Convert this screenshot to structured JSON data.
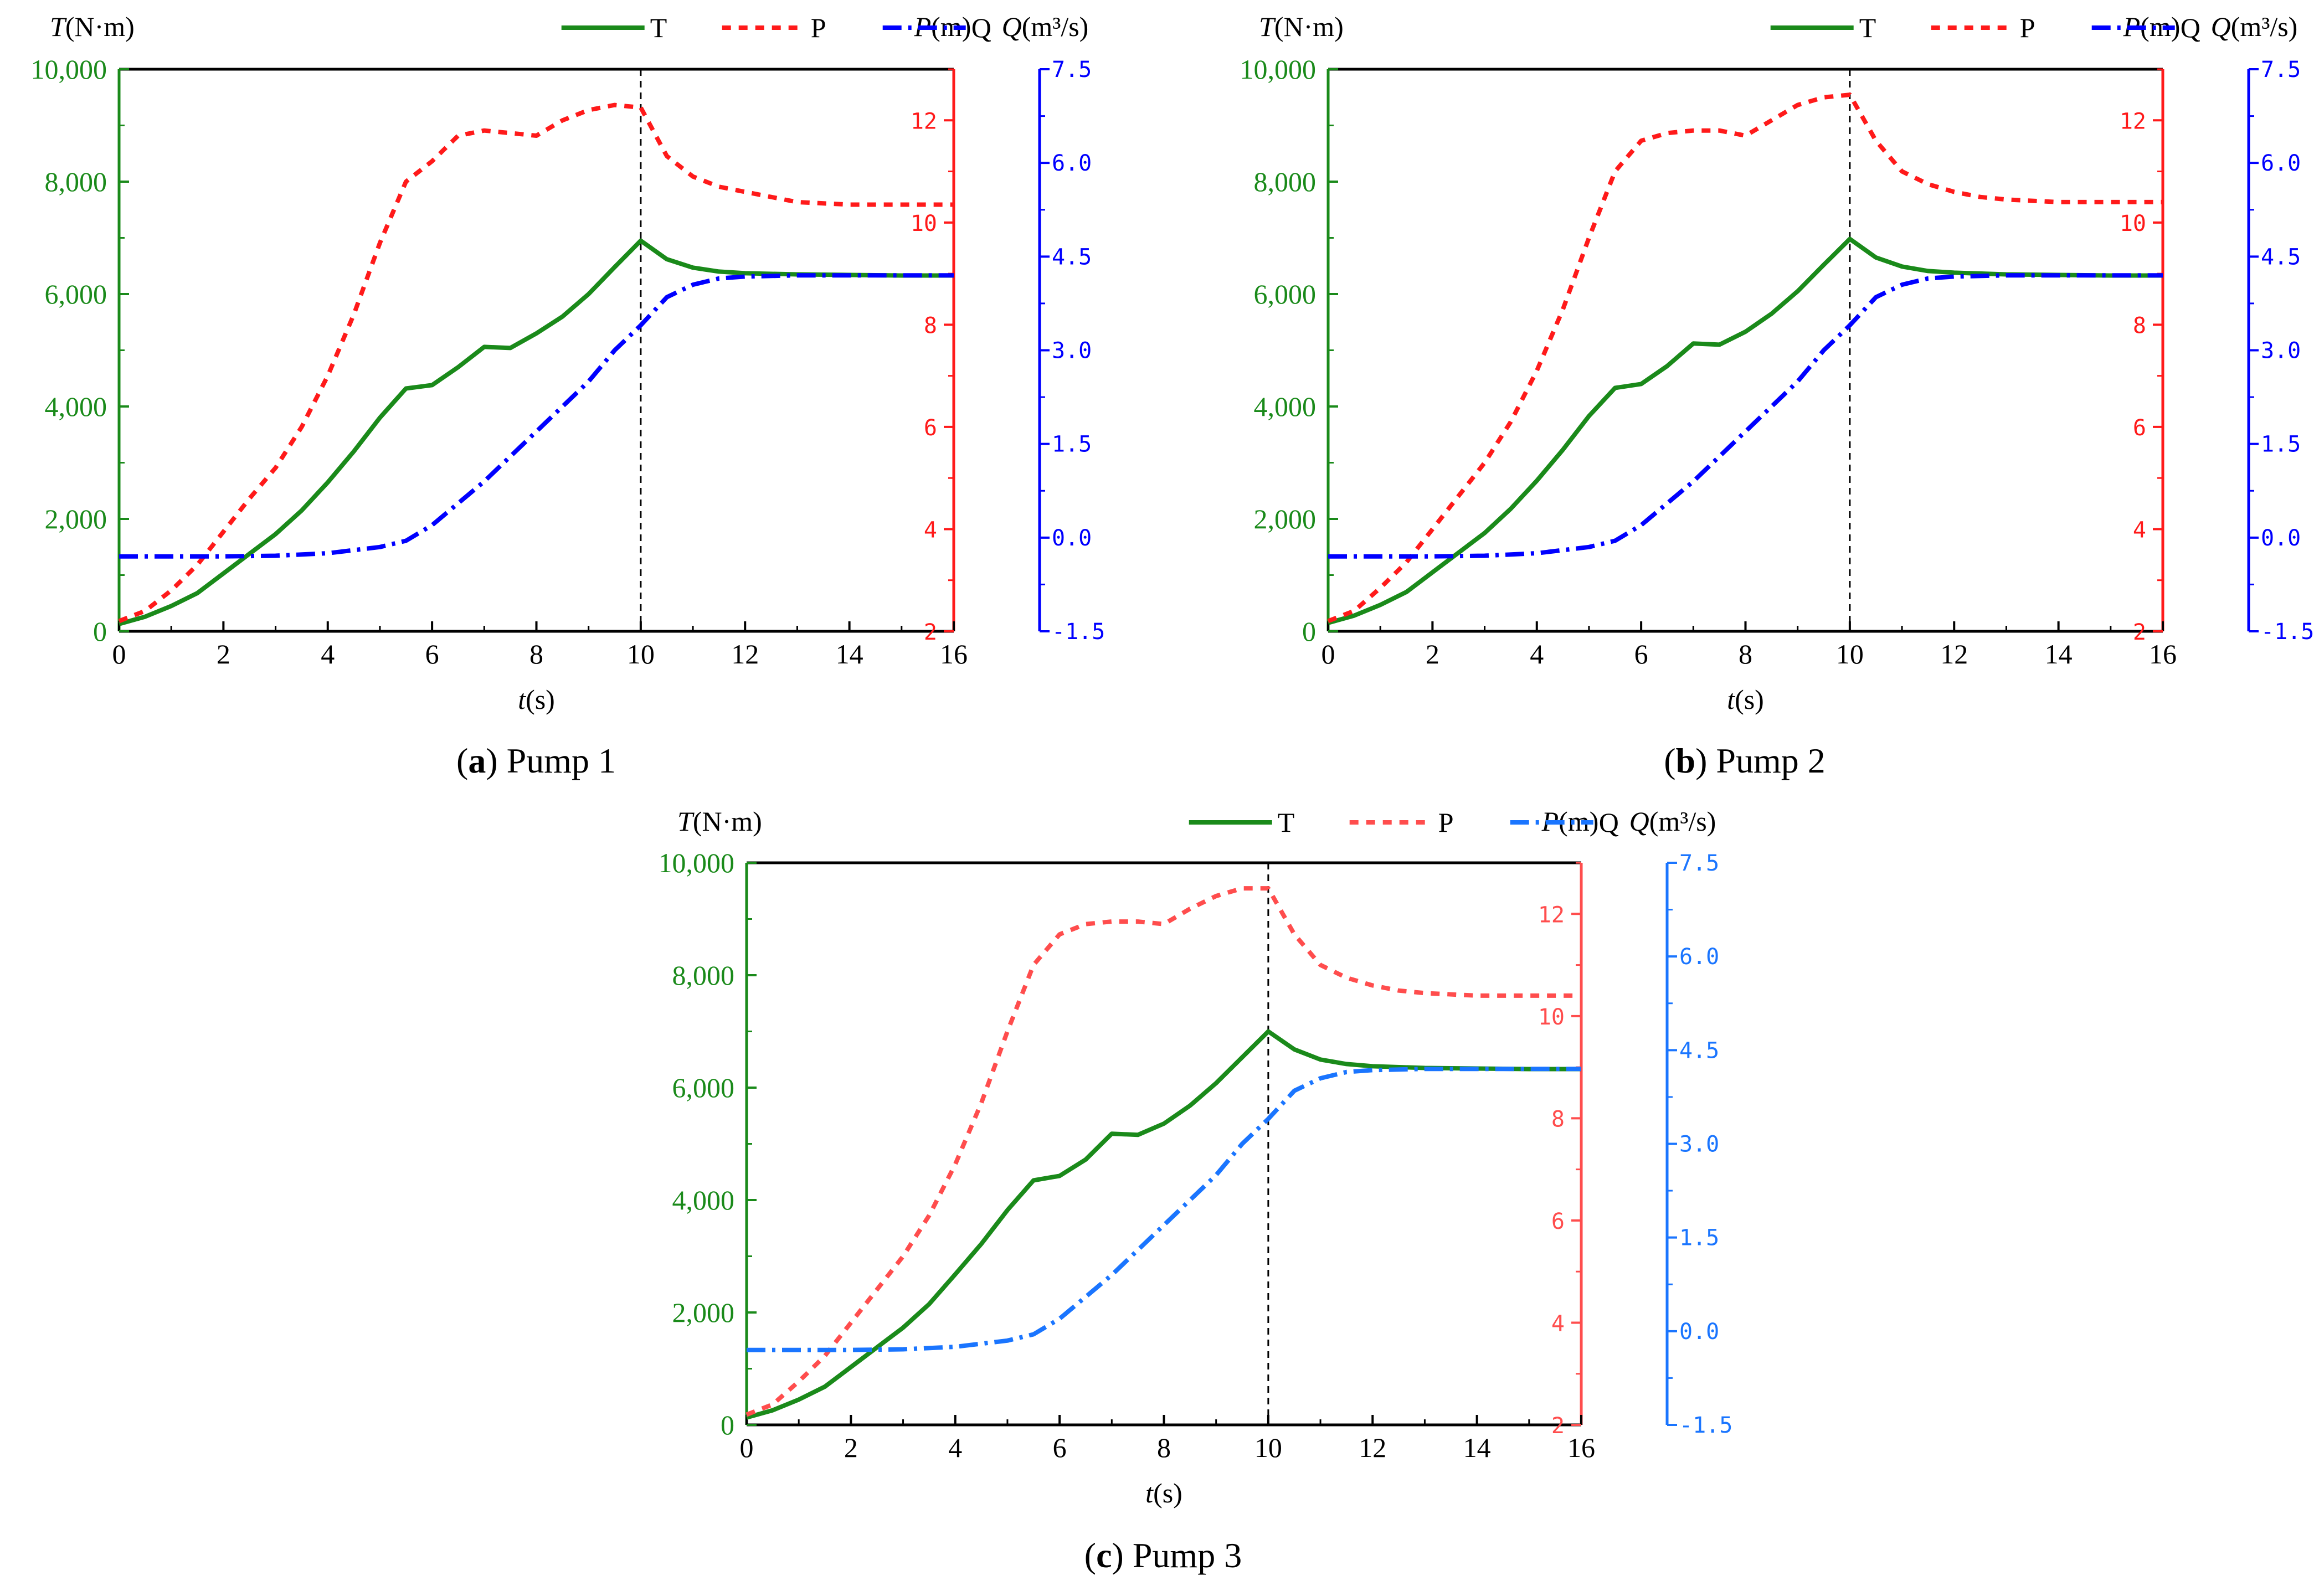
{
  "figure_captions": [
    {
      "letter": "a",
      "text": " Pump 1"
    },
    {
      "letter": "b",
      "text": " Pump 2"
    },
    {
      "letter": "c",
      "text": " Pump 3"
    }
  ],
  "colors": {
    "torque": "#1a8a1a",
    "pressure": "#ff1a1a",
    "flow_panels_ab": "#0000ff",
    "flow_panel_c": "#1a75ff",
    "pressure_axis_c": "#ff4d4d",
    "frame": "#000000"
  },
  "chart_data": [
    {
      "type": "line",
      "panel": "a",
      "caption": "Pump 1",
      "xlabel_italic": "t",
      "xlabel_rest": "(s)",
      "xlim": [
        0,
        16
      ],
      "xticks": [
        "0",
        "2",
        "4",
        "6",
        "8",
        "10",
        "12",
        "14",
        "16"
      ],
      "marker_x": 10,
      "axes": {
        "T": {
          "label_italic": "T",
          "label_rest": "(N·m)",
          "ylim": [
            0,
            10000
          ],
          "ticks": [
            "0",
            "2,000",
            "4,000",
            "6,000",
            "8,000",
            "10,000"
          ]
        },
        "P": {
          "label_italic": "P",
          "label_rest": "(m)",
          "ylim": [
            2,
            13
          ],
          "ticks": [
            "2",
            "4",
            "6",
            "8",
            "10",
            "12"
          ]
        },
        "Q": {
          "label_italic": "Q",
          "label_rest": "(m³/s)",
          "ylim": [
            -1.5,
            7.5
          ],
          "ticks": [
            "-1.5",
            "0.0",
            "1.5",
            "3.0",
            "4.5",
            "6.0",
            "7.5"
          ]
        }
      },
      "legend": [
        "T",
        "P",
        "Q"
      ],
      "series": [
        {
          "name": "T",
          "x": [
            0,
            0.5,
            1,
            1.5,
            2,
            2.5,
            3,
            3.5,
            4,
            4.5,
            5,
            5.5,
            6,
            6.5,
            7,
            7.5,
            8,
            8.5,
            9,
            9.5,
            10,
            10.5,
            11,
            11.5,
            12,
            13,
            14,
            15,
            16
          ],
          "values": [
            130,
            260,
            450,
            680,
            1030,
            1380,
            1730,
            2150,
            2650,
            3200,
            3800,
            4320,
            4380,
            4700,
            5060,
            5040,
            5300,
            5600,
            6000,
            6480,
            6950,
            6620,
            6470,
            6400,
            6370,
            6350,
            6340,
            6330,
            6330
          ]
        },
        {
          "name": "P",
          "x": [
            0,
            0.5,
            1,
            1.5,
            2,
            2.5,
            3,
            3.5,
            4,
            4.5,
            5,
            5.5,
            6,
            6.5,
            7,
            7.5,
            8,
            8.5,
            9,
            9.5,
            10,
            10.5,
            11,
            11.5,
            12,
            12.5,
            13,
            14,
            15,
            16
          ],
          "values": [
            2.2,
            2.4,
            2.8,
            3.3,
            3.95,
            4.6,
            5.2,
            6.0,
            7.0,
            8.2,
            9.6,
            10.8,
            11.2,
            11.7,
            11.8,
            11.75,
            11.7,
            12.0,
            12.2,
            12.3,
            12.25,
            11.3,
            10.9,
            10.7,
            10.6,
            10.5,
            10.4,
            10.35,
            10.35,
            10.35
          ]
        },
        {
          "name": "Q",
          "x": [
            0,
            1,
            2,
            3,
            4,
            5,
            5.5,
            6,
            6.5,
            7,
            7.5,
            8,
            8.5,
            9,
            9.5,
            10,
            10.5,
            11,
            11.5,
            12,
            13,
            14,
            15,
            16
          ],
          "values": [
            -0.3,
            -0.3,
            -0.3,
            -0.29,
            -0.25,
            -0.15,
            -0.05,
            0.2,
            0.55,
            0.9,
            1.3,
            1.7,
            2.1,
            2.5,
            3.0,
            3.4,
            3.85,
            4.05,
            4.15,
            4.18,
            4.2,
            4.2,
            4.2,
            4.2
          ]
        }
      ]
    },
    {
      "type": "line",
      "panel": "b",
      "caption": "Pump 2",
      "xlabel_italic": "t",
      "xlabel_rest": "(s)",
      "xlim": [
        0,
        16
      ],
      "xticks": [
        "0",
        "2",
        "4",
        "6",
        "8",
        "10",
        "12",
        "14",
        "16"
      ],
      "marker_x": 10,
      "axes": {
        "T": {
          "label_italic": "T",
          "label_rest": "(N·m)",
          "ylim": [
            0,
            10000
          ],
          "ticks": [
            "0",
            "2,000",
            "4,000",
            "6,000",
            "8,000",
            "10,000"
          ]
        },
        "P": {
          "label_italic": "P",
          "label_rest": "(m)",
          "ylim": [
            2,
            13
          ],
          "ticks": [
            "2",
            "4",
            "6",
            "8",
            "10",
            "12"
          ]
        },
        "Q": {
          "label_italic": "Q",
          "label_rest": "(m³/s)",
          "ylim": [
            -1.5,
            7.5
          ],
          "ticks": [
            "-1.5",
            "0.0",
            "1.5",
            "3.0",
            "4.5",
            "6.0",
            "7.5"
          ]
        }
      },
      "legend": [
        "T",
        "P",
        "Q"
      ],
      "series": [
        {
          "name": "T",
          "x": [
            0,
            0.5,
            1,
            1.5,
            2,
            2.5,
            3,
            3.5,
            4,
            4.5,
            5,
            5.5,
            6,
            6.5,
            7,
            7.5,
            8,
            8.5,
            9,
            9.5,
            10,
            10.5,
            11,
            11.5,
            12,
            13,
            14,
            15,
            16
          ],
          "values": [
            150,
            280,
            470,
            700,
            1050,
            1400,
            1750,
            2180,
            2680,
            3230,
            3830,
            4330,
            4400,
            4720,
            5120,
            5100,
            5330,
            5650,
            6050,
            6520,
            6980,
            6650,
            6490,
            6410,
            6380,
            6350,
            6340,
            6330,
            6330
          ]
        },
        {
          "name": "P",
          "x": [
            0,
            0.5,
            1,
            1.5,
            2,
            2.5,
            3,
            3.5,
            4,
            4.5,
            5,
            5.5,
            6,
            6.5,
            7,
            7.5,
            8,
            8.5,
            9,
            9.5,
            10,
            10.5,
            11,
            11.5,
            12,
            12.5,
            13,
            14,
            15,
            16
          ],
          "values": [
            2.2,
            2.4,
            2.85,
            3.35,
            4.0,
            4.65,
            5.3,
            6.1,
            7.1,
            8.3,
            9.7,
            11.0,
            11.6,
            11.75,
            11.8,
            11.8,
            11.7,
            12.0,
            12.3,
            12.45,
            12.5,
            11.6,
            11.0,
            10.75,
            10.6,
            10.5,
            10.45,
            10.4,
            10.4,
            10.4
          ]
        },
        {
          "name": "Q",
          "x": [
            0,
            1,
            2,
            3,
            4,
            5,
            5.5,
            6,
            6.5,
            7,
            7.5,
            8,
            8.5,
            9,
            9.5,
            10,
            10.5,
            11,
            11.5,
            12,
            13,
            14,
            15,
            16
          ],
          "values": [
            -0.3,
            -0.3,
            -0.3,
            -0.29,
            -0.25,
            -0.15,
            -0.05,
            0.2,
            0.55,
            0.9,
            1.3,
            1.7,
            2.1,
            2.5,
            3.0,
            3.4,
            3.85,
            4.05,
            4.15,
            4.18,
            4.2,
            4.2,
            4.2,
            4.2
          ]
        }
      ]
    },
    {
      "type": "line",
      "panel": "c",
      "caption": "Pump 3",
      "xlabel_italic": "t",
      "xlabel_rest": "(s)",
      "xlim": [
        0,
        16
      ],
      "xticks": [
        "0",
        "2",
        "4",
        "6",
        "8",
        "10",
        "12",
        "14",
        "16"
      ],
      "marker_x": 10,
      "axes": {
        "T": {
          "label_italic": "T",
          "label_rest": "(N·m)",
          "ylim": [
            0,
            10000
          ],
          "ticks": [
            "0",
            "2,000",
            "4,000",
            "6,000",
            "8,000",
            "10,000"
          ]
        },
        "P": {
          "label_italic": "P",
          "label_rest": "(m)",
          "ylim": [
            2,
            13
          ],
          "ticks": [
            "2",
            "4",
            "6",
            "8",
            "10",
            "12"
          ]
        },
        "Q": {
          "label_italic": "Q",
          "label_rest": "(m³/s)",
          "ylim": [
            -1.5,
            7.5
          ],
          "ticks": [
            "-1.5",
            "0.0",
            "1.5",
            "3.0",
            "4.5",
            "6.0",
            "7.5"
          ]
        }
      },
      "legend": [
        "T",
        "P",
        "Q"
      ],
      "series": [
        {
          "name": "T",
          "x": [
            0,
            0.5,
            1,
            1.5,
            2,
            2.5,
            3,
            3.5,
            4,
            4.5,
            5,
            5.5,
            6,
            6.5,
            7,
            7.5,
            8,
            8.5,
            9,
            9.5,
            10,
            10.5,
            11,
            11.5,
            12,
            13,
            14,
            15,
            16
          ],
          "values": [
            130,
            260,
            450,
            680,
            1030,
            1380,
            1730,
            2150,
            2680,
            3220,
            3820,
            4350,
            4430,
            4720,
            5180,
            5160,
            5360,
            5680,
            6080,
            6540,
            7000,
            6680,
            6500,
            6420,
            6380,
            6350,
            6340,
            6330,
            6330
          ]
        },
        {
          "name": "P",
          "x": [
            0,
            0.5,
            1,
            1.5,
            2,
            2.5,
            3,
            3.5,
            4,
            4.5,
            5,
            5.5,
            6,
            6.5,
            7,
            7.5,
            8,
            8.5,
            9,
            9.5,
            10,
            10.5,
            11,
            11.5,
            12,
            12.5,
            13,
            14,
            15,
            16
          ],
          "values": [
            2.2,
            2.4,
            2.85,
            3.35,
            4.0,
            4.65,
            5.3,
            6.1,
            7.1,
            8.3,
            9.7,
            11.0,
            11.6,
            11.8,
            11.85,
            11.85,
            11.8,
            12.1,
            12.35,
            12.5,
            12.5,
            11.6,
            11.0,
            10.75,
            10.6,
            10.5,
            10.45,
            10.4,
            10.4,
            10.4
          ]
        },
        {
          "name": "Q",
          "x": [
            0,
            1,
            2,
            3,
            4,
            5,
            5.5,
            6,
            6.5,
            7,
            7.5,
            8,
            8.5,
            9,
            9.5,
            10,
            10.5,
            11,
            11.5,
            12,
            13,
            14,
            15,
            16
          ],
          "values": [
            -0.3,
            -0.3,
            -0.3,
            -0.29,
            -0.25,
            -0.15,
            -0.05,
            0.2,
            0.55,
            0.9,
            1.3,
            1.7,
            2.1,
            2.5,
            3.0,
            3.4,
            3.85,
            4.05,
            4.15,
            4.18,
            4.2,
            4.2,
            4.2,
            4.2
          ]
        }
      ]
    }
  ]
}
